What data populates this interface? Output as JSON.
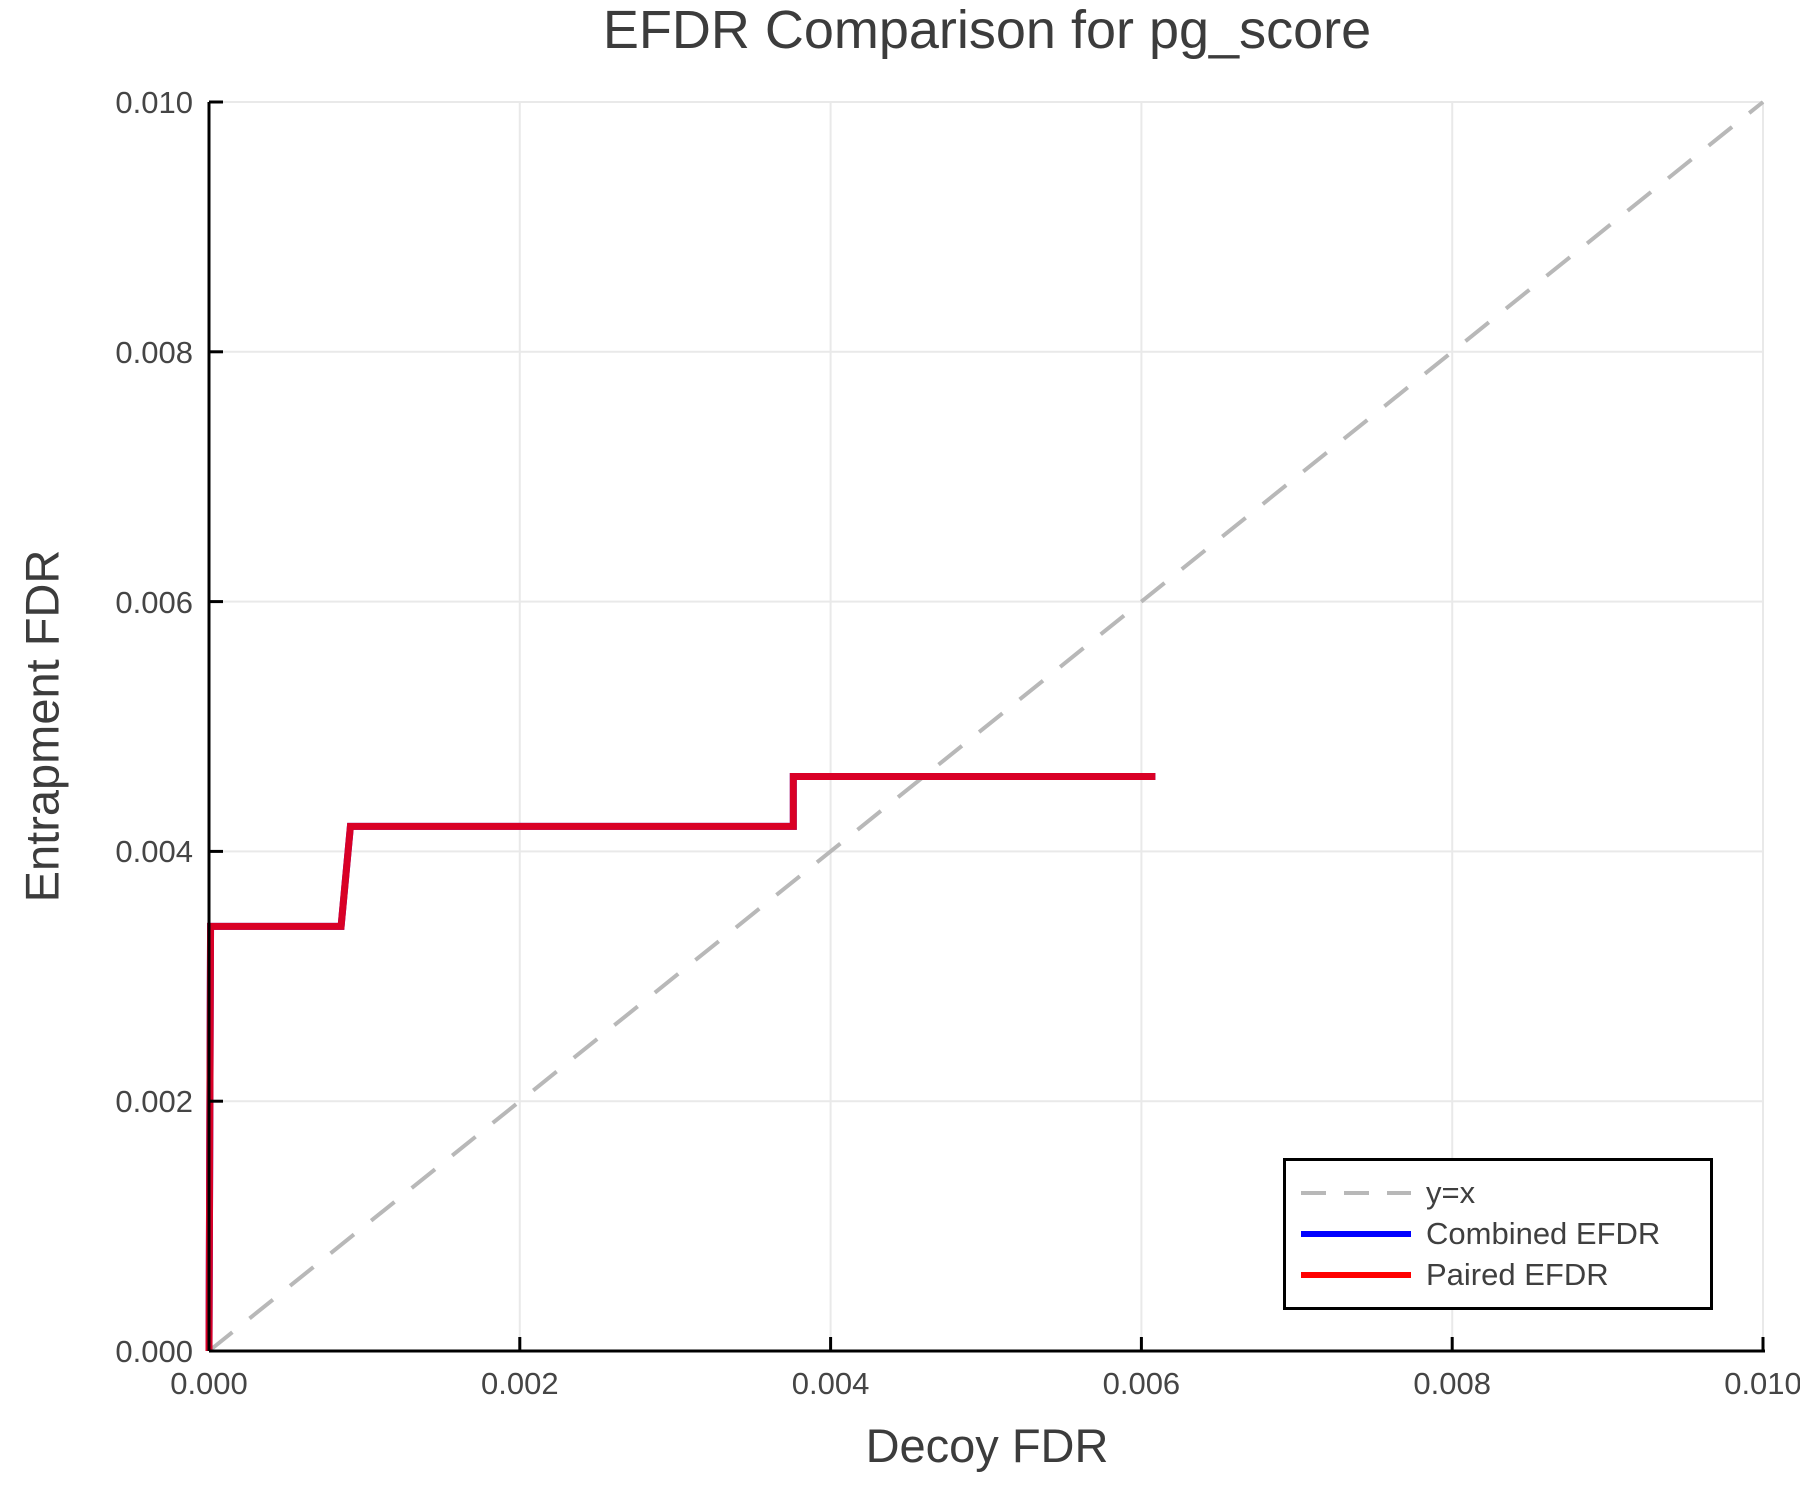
{
  "title": "EFDR Comparison for pg_score",
  "colors": {
    "background": "#ffffff",
    "axis": "#000000",
    "grid": "#e9e9e9",
    "text": "#3f3f3f",
    "identity_line": "#b8b8b8",
    "combined": "#0000ff",
    "paired": "#ff0000",
    "legend_border": "#000000"
  },
  "chart_data": {
    "type": "line",
    "title": "EFDR Comparison for pg_score",
    "xlabel": "Decoy FDR",
    "ylabel": "Entrapment FDR",
    "xlim": [
      0.0,
      0.01
    ],
    "ylim": [
      0.0,
      0.01
    ],
    "grid": true,
    "legend_position": "bottom-right",
    "x_tick_labels": [
      "0.000",
      "0.002",
      "0.004",
      "0.006",
      "0.008",
      "0.010"
    ],
    "x_tick_values": [
      0.0,
      0.002,
      0.004,
      0.006,
      0.008,
      0.01
    ],
    "y_tick_labels": [
      "0.000",
      "0.002",
      "0.004",
      "0.006",
      "0.008",
      "0.010"
    ],
    "y_tick_values": [
      0.0,
      0.002,
      0.004,
      0.006,
      0.008,
      0.01
    ],
    "series": [
      {
        "name": "y=x",
        "style": "dashed",
        "color": "#b8b8b8",
        "width": 4,
        "opacity": 1,
        "points": [
          [
            0.0,
            0.0
          ],
          [
            0.01,
            0.01
          ]
        ]
      },
      {
        "name": "Combined EFDR",
        "style": "solid",
        "color": "#0000ff",
        "width": 7,
        "opacity": 1,
        "points": [
          [
            0.0,
            0.0
          ],
          [
            1e-05,
            0.0034
          ],
          [
            0.00085,
            0.0034
          ],
          [
            0.00091,
            0.0042
          ],
          [
            0.00376,
            0.0042
          ],
          [
            0.00376,
            0.0046
          ],
          [
            0.00609,
            0.0046
          ]
        ]
      },
      {
        "name": "Paired EFDR",
        "style": "solid",
        "color": "#ff0000",
        "width": 7,
        "opacity": 0.85,
        "points": [
          [
            0.0,
            0.0
          ],
          [
            1e-05,
            0.0034
          ],
          [
            0.00085,
            0.0034
          ],
          [
            0.00091,
            0.0042
          ],
          [
            0.00376,
            0.0042
          ],
          [
            0.00376,
            0.0046
          ],
          [
            0.00609,
            0.0046
          ]
        ]
      }
    ]
  },
  "legend": {
    "items": [
      {
        "label": "y=x"
      },
      {
        "label": "Combined EFDR"
      },
      {
        "label": "Paired EFDR"
      }
    ]
  }
}
